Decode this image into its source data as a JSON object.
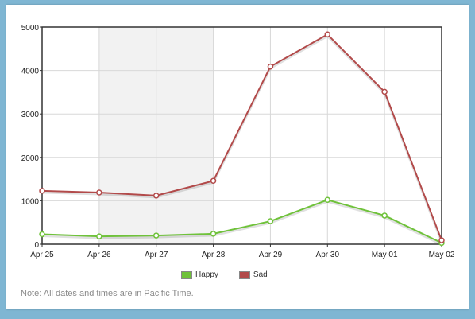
{
  "chart_data": {
    "type": "line",
    "x": [
      "Apr 25",
      "Apr 26",
      "Apr 27",
      "Apr 28",
      "Apr 29",
      "Apr 30",
      "May 01",
      "May 02"
    ],
    "x_tick_labels": [
      "Apr 25",
      "Apr 26",
      "Apr 27",
      "Apr 28",
      "Apr 29",
      "Apr 30",
      "May 01",
      "May 02"
    ],
    "ylim": [
      0,
      5000
    ],
    "y_ticks": [
      0,
      1000,
      2000,
      3000,
      4000,
      5000
    ],
    "grid": true,
    "highlight_band": [
      "Apr 26",
      "Apr 28"
    ],
    "legend_position": "bottom",
    "series": [
      {
        "name": "Happy",
        "color": "#6fc23a",
        "values": [
          230,
          180,
          200,
          240,
          530,
          1020,
          660,
          30
        ]
      },
      {
        "name": "Sad",
        "color": "#b24a4a",
        "values": [
          1230,
          1190,
          1120,
          1460,
          4090,
          4830,
          3510,
          90
        ]
      }
    ]
  },
  "legend": {
    "happy_label": "Happy",
    "sad_label": "Sad"
  },
  "footer": {
    "note": "Note: All dates and times are in Pacific Time."
  }
}
